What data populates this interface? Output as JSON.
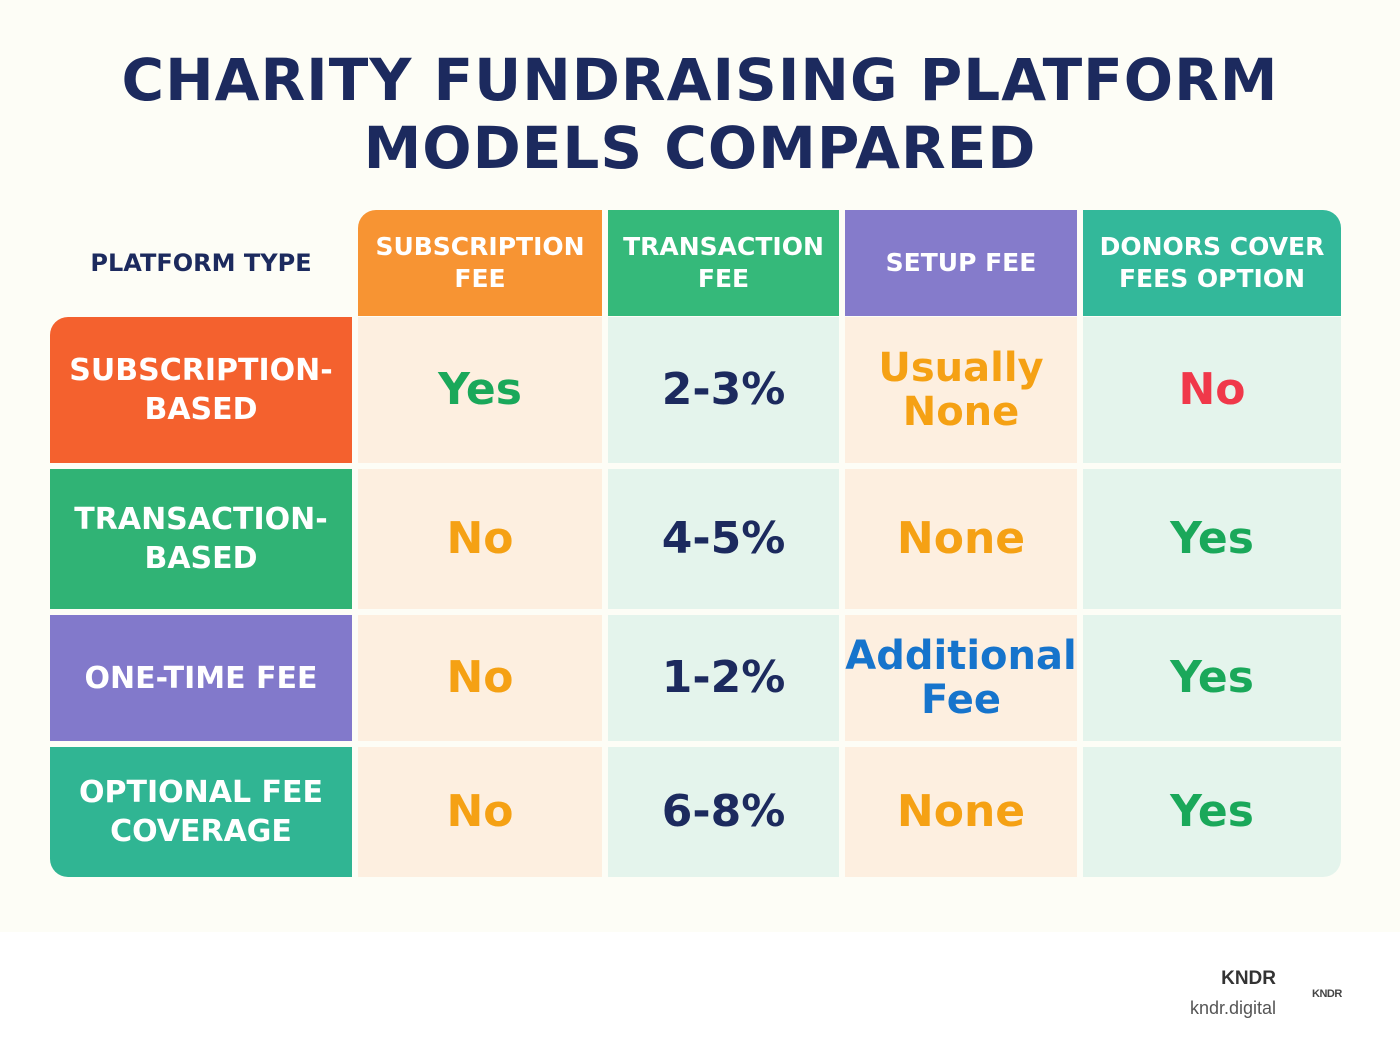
{
  "title": {
    "line1": "CHARITY FUNDRAISING PLATFORM",
    "line2": "MODELS COMPARED"
  },
  "table": {
    "corner_label": "PLATFORM TYPE",
    "columns": [
      {
        "label": "SUBSCRIPTION FEE",
        "color": "#f79433"
      },
      {
        "label": "TRANSACTION FEE",
        "color": "#35b97a"
      },
      {
        "label": "SETUP FEE",
        "color": "#857bcb"
      },
      {
        "label": "DONORS COVER FEES OPTION",
        "color": "#33b89a"
      }
    ],
    "rows": [
      {
        "label": "SUBSCRIPTION-BASED",
        "color": "#f4612e",
        "values": [
          "Yes",
          "2-3%",
          "Usually None",
          "No"
        ]
      },
      {
        "label": "TRANSACTION-BASED",
        "color": "#30b375",
        "values": [
          "No",
          "4-5%",
          "None",
          "Yes"
        ]
      },
      {
        "label": "ONE-TIME FEE",
        "color": "#8279cb",
        "values": [
          "No",
          "1-2%",
          "Additional Fee",
          "Yes"
        ]
      },
      {
        "label": "OPTIONAL FEE COVERAGE",
        "color": "#30b593",
        "values": [
          "No",
          "6-8%",
          "None",
          "Yes"
        ]
      }
    ],
    "cell_backgrounds": [
      "#fdefe0",
      "#e4f4ec",
      "#fdefe0",
      "#e4f4ec"
    ]
  },
  "brand": {
    "name": "KNDR",
    "url": "kndr.digital",
    "mark": "KNDR"
  }
}
